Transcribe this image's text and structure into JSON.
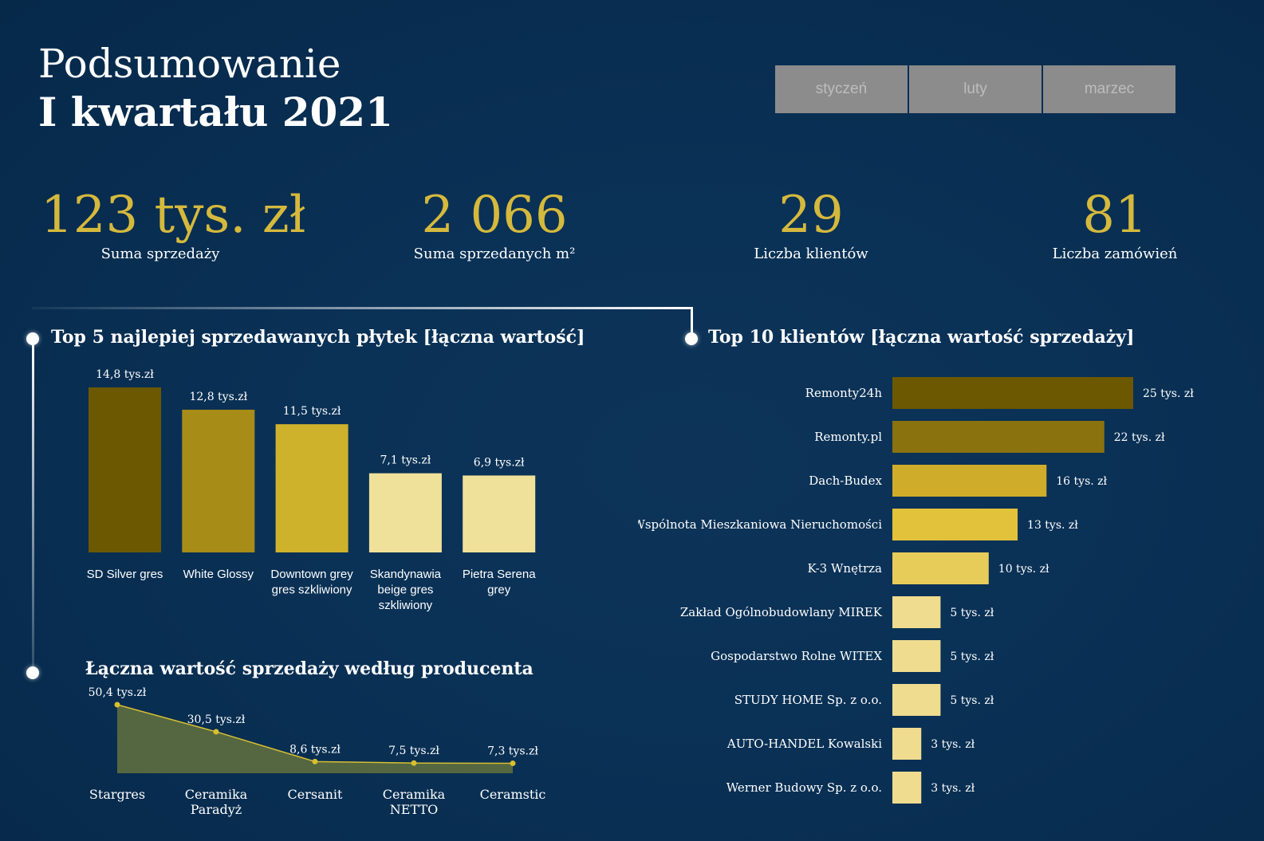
{
  "header": {
    "title_line1": "Podsumowanie",
    "title_line2": "I kwartału 2021"
  },
  "months": [
    "styczeń",
    "luty",
    "marzec"
  ],
  "kpis": [
    {
      "value": "123 tys. zł",
      "label": "Suma sprzedaży"
    },
    {
      "value": "2 066",
      "label": "Suma sprzedanych m²"
    },
    {
      "value": "29",
      "label": "Liczba klientów"
    },
    {
      "value": "81",
      "label": "Liczba zamówień"
    }
  ],
  "colors": {
    "background": "#0a3156",
    "accent": "#d5b93d",
    "bar_dark": "#6b5800",
    "bar_mid": "#a88c18",
    "bar_gold": "#cfb22c",
    "bar_light": "#f0e19a",
    "area_fill": "#5a6a40",
    "line": "#d8bf30"
  },
  "chart_data": [
    {
      "id": "top_tiles",
      "type": "bar",
      "title": "Top 5 najlepiej sprzedawanych płytek [łączna wartość]",
      "categories": [
        "SD Silver gres",
        "White Glossy",
        "Downtown grey gres szkliwiony",
        "Skandynawia beige gres szkliwiony",
        "Pietra Serena grey"
      ],
      "category_lines": [
        [
          "SD Silver gres"
        ],
        [
          "White Glossy"
        ],
        [
          "Downtown grey",
          "gres szkliwiony"
        ],
        [
          "Skandynawia",
          "beige gres",
          "szkliwiony"
        ],
        [
          "Pietra Serena",
          "grey"
        ]
      ],
      "values": [
        14.8,
        12.8,
        11.5,
        7.1,
        6.9
      ],
      "value_labels": [
        "14,8 tys.zł",
        "12,8 tys.zł",
        "11,5 tys.zł",
        "7,1 tys.zł",
        "6,9 tys.zł"
      ],
      "bar_colors": [
        "#6b5800",
        "#a88c18",
        "#cfb22c",
        "#f0e19a",
        "#f0e19a"
      ],
      "ylim": [
        0,
        14.8
      ]
    },
    {
      "id": "top_clients",
      "type": "bar",
      "orientation": "horizontal",
      "title": "Top 10 klientów [łączna wartość sprzedaży]",
      "categories": [
        "Remonty24h",
        "Remonty.pl",
        "Dach-Budex",
        "Wspólnota Mieszkaniowa Nieruchomości",
        "K-3 Wnętrza",
        "Zakład Ogólnobudowlany MIREK",
        "Gospodarstwo Rolne WITEX",
        "STUDY HOME Sp. z o.o.",
        "AUTO-HANDEL Kowalski",
        "Werner Budowy Sp. z o.o."
      ],
      "values": [
        25,
        22,
        16,
        13,
        10,
        5,
        5,
        5,
        3,
        3
      ],
      "value_labels": [
        "25 tys. zł",
        "22 tys. zł",
        "16 tys. zł",
        "13 tys. zł",
        "10 tys. zł",
        "5 tys. zł",
        "5 tys. zł",
        "5 tys. zł",
        "3 tys. zł",
        "3 tys. zł"
      ],
      "bar_colors": [
        "#6b5800",
        "#8a720f",
        "#cfad2a",
        "#e3c23b",
        "#e8cc5a",
        "#efdc8f",
        "#efdc8f",
        "#efdc8f",
        "#efdc8f",
        "#efdc8f"
      ],
      "xlim": [
        0,
        25
      ]
    },
    {
      "id": "by_producer",
      "type": "area",
      "title": "Łączna wartość sprzedaży według producenta",
      "categories": [
        "Stargres",
        "Ceramika Paradyż",
        "Cersanit",
        "Ceramika NETTO",
        "Ceramstic"
      ],
      "category_lines": [
        [
          "Stargres"
        ],
        [
          "Ceramika",
          "Paradyż"
        ],
        [
          "Cersanit"
        ],
        [
          "Ceramika",
          "NETTO"
        ],
        [
          "Ceramstic"
        ]
      ],
      "values": [
        50.4,
        30.5,
        8.6,
        7.5,
        7.3
      ],
      "value_labels": [
        "50,4 tys.zł",
        "30,5 tys.zł",
        "8,6 tys.zł",
        "7,5 tys.zł",
        "7,3 tys.zł"
      ],
      "ylim": [
        0,
        50.4
      ]
    }
  ]
}
